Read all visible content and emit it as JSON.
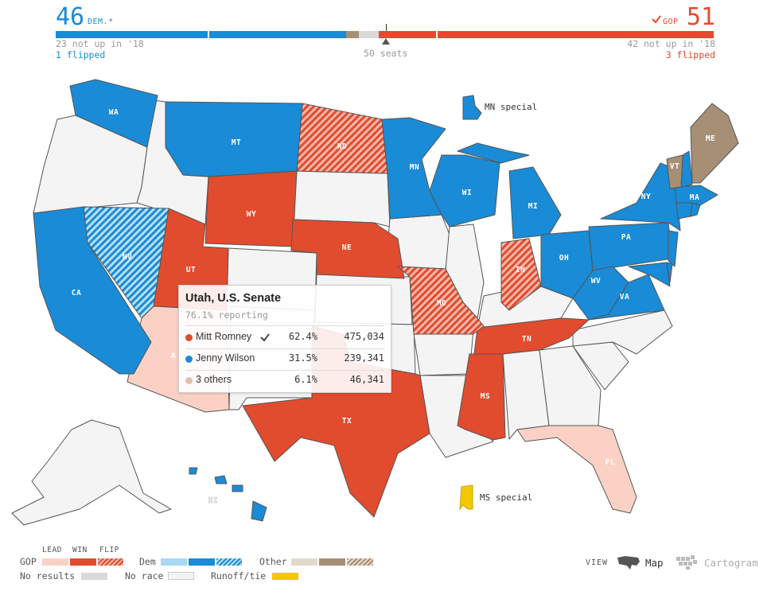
{
  "header": {
    "dem_count": "46",
    "dem_label": "DEM.*",
    "gop_count": "51",
    "gop_label": "GOP",
    "dem_not_up": "23 not up in '18",
    "dem_flipped": "1 flipped",
    "gop_not_up": "42 not up in '18",
    "gop_flipped": "3 flipped",
    "majority": "50 seats"
  },
  "colors": {
    "dem_win": "#1a8bd6",
    "dem_lead": "#a7d8f4",
    "gop_win": "#e14b2e",
    "gop_lead": "#fbd1c5",
    "other_win": "#a68f75",
    "other_lead": "#e3d8cc",
    "no_results": "#d9d9d9",
    "no_race": "#f4f4f4",
    "runoff": "#f5c800"
  },
  "states": {
    "WA": "WA",
    "MT": "MT",
    "ND": "ND",
    "MN": "MN",
    "WI": "WI",
    "MI": "MI",
    "NY": "NY",
    "VT": "VT",
    "ME": "ME",
    "MA": "MA",
    "PA": "PA",
    "OH": "OH",
    "IN": "IN",
    "WV": "WV",
    "VA": "VA",
    "WY": "WY",
    "NE": "NE",
    "MO": "MO",
    "TN": "TN",
    "MS": "MS",
    "TX": "TX",
    "FL": "FL",
    "NV": "NV",
    "CA": "CA",
    "UT": "UT",
    "AZ": "A",
    "HI": "HI"
  },
  "specials": {
    "mn": "MN special",
    "ms": "MS special"
  },
  "tooltip": {
    "title": "Utah, U.S. Senate",
    "reporting": "76.1% reporting",
    "candidates": [
      {
        "name": "Mitt Romney",
        "winner": true,
        "pct": "62.4%",
        "votes": "475,034",
        "color": "#e14b2e"
      },
      {
        "name": "Jenny Wilson",
        "winner": false,
        "pct": "31.5%",
        "votes": "239,341",
        "color": "#1a8bd6"
      },
      {
        "name": "3 others",
        "winner": false,
        "pct": "6.1%",
        "votes": "46,341",
        "color": "#e0c0b0"
      }
    ]
  },
  "legend": {
    "lead": "LEAD",
    "win": "WIN",
    "flip": "FLIP",
    "gop": "GOP",
    "dem": "Dem",
    "other": "Other",
    "no_results": "No results",
    "no_race": "No race",
    "runoff": "Runoff/tie"
  },
  "view": {
    "label": "VIEW",
    "map": "Map",
    "cartogram": "Cartogram",
    "selected": "Map"
  }
}
